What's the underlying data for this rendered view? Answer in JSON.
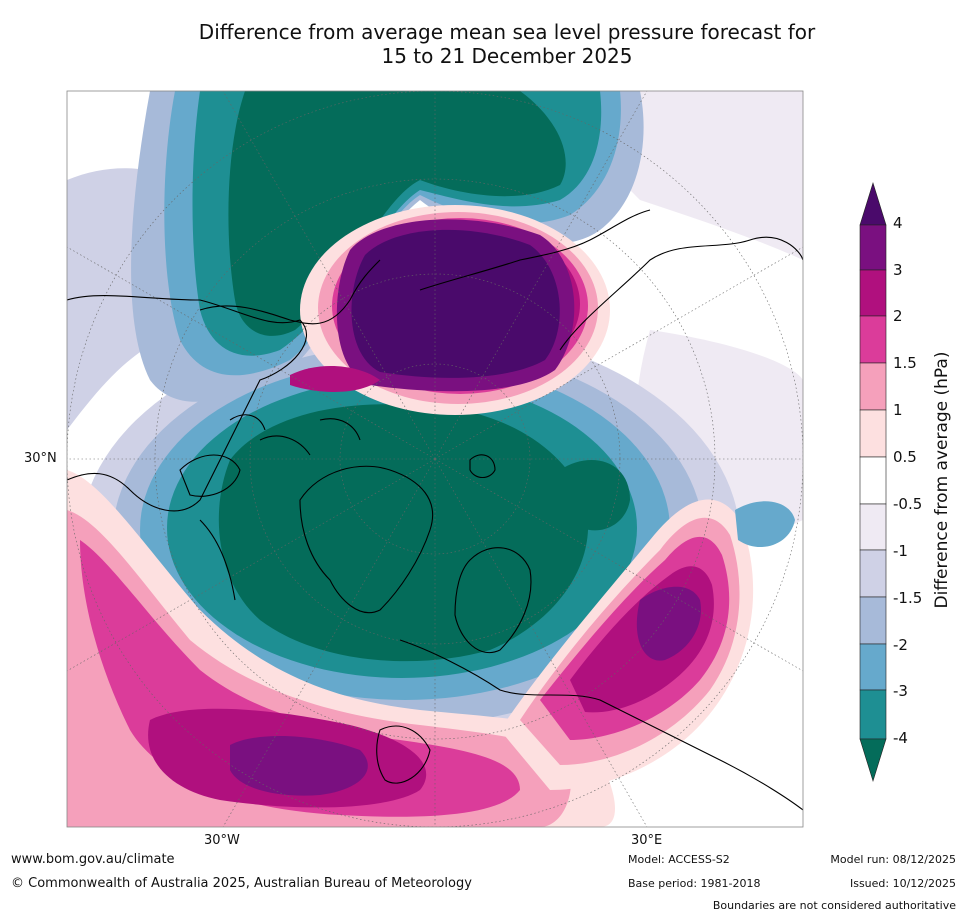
{
  "title": {
    "line1": "Difference from average mean sea level pressure forecast for",
    "line2": "15 to 21 December 2025"
  },
  "map": {
    "projection": "north polar stereographic",
    "labels": {
      "lat_30n": "30°N",
      "lon_30w": "30°W",
      "lon_30e": "30°E"
    }
  },
  "colorbar": {
    "title": "Difference from average (hPa)",
    "ticks": [
      "4",
      "3",
      "2",
      "1.5",
      "1",
      "0.5",
      "-0.5",
      "-1",
      "-1.5",
      "-2",
      "-3",
      "-4"
    ],
    "colors": {
      "gt4": "#4a0a6b",
      "3_4": "#7a1080",
      "2_3": "#b0107e",
      "1.5_2": "#db3c9a",
      "1_1.5": "#f5a0bb",
      "0.5_1": "#fde0e0",
      "neutral": "#ffffff",
      "m1_m0.5": "#efeaf3",
      "m1.5_m1": "#cfd1e6",
      "m2_m1.5": "#a7bad9",
      "m3_m2": "#66a9cc",
      "m4_m3": "#1e8f93",
      "lt_m4": "#046c5a"
    }
  },
  "footer": {
    "url": "www.bom.gov.au/climate",
    "copyright": "© Commonwealth of Australia 2025, Australian Bureau of Meteorology",
    "model": "Model: ACCESS-S2",
    "model_run": "Model run: 08/12/2025",
    "base_period": "Base period: 1981-2018",
    "issued": "Issued: 10/12/2025",
    "disclaimer": "Boundaries are not considered authoritative"
  }
}
